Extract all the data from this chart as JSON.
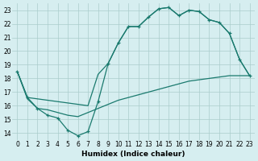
{
  "xlabel": "Humidex (Indice chaleur)",
  "bg_color": "#d6eef0",
  "grid_color": "#aacccc",
  "line_color": "#1a7a6e",
  "xlim": [
    -0.5,
    23.5
  ],
  "ylim": [
    13.5,
    23.5
  ],
  "yticks": [
    14,
    15,
    16,
    17,
    18,
    19,
    20,
    21,
    22,
    23
  ],
  "xticks": [
    0,
    1,
    2,
    3,
    4,
    5,
    6,
    7,
    8,
    9,
    10,
    11,
    12,
    13,
    14,
    15,
    16,
    17,
    18,
    19,
    20,
    21,
    22,
    23
  ],
  "curve_main_x": [
    0,
    1,
    2,
    3,
    4,
    5,
    6,
    7,
    8,
    9,
    10,
    11,
    12,
    13,
    14,
    15,
    16,
    17,
    18,
    19,
    20,
    21,
    22,
    23
  ],
  "curve_main_y": [
    18.5,
    16.6,
    15.8,
    15.3,
    15.1,
    14.2,
    13.8,
    14.1,
    16.3,
    19.1,
    20.6,
    21.8,
    21.8,
    22.5,
    23.1,
    23.2,
    22.6,
    23.0,
    22.9,
    22.3,
    22.1,
    21.3,
    19.4,
    18.2
  ],
  "curve_upper_x": [
    0,
    1,
    7,
    8,
    9,
    10,
    11,
    12,
    13,
    14,
    15,
    16,
    17,
    18,
    19,
    20,
    21,
    22,
    23
  ],
  "curve_upper_y": [
    18.5,
    16.6,
    16.0,
    18.3,
    19.1,
    20.6,
    21.8,
    21.8,
    22.5,
    23.1,
    23.2,
    22.6,
    23.0,
    22.9,
    22.3,
    22.1,
    21.3,
    19.4,
    18.2
  ],
  "curve_lower_x": [
    0,
    1,
    2,
    3,
    4,
    5,
    6,
    7,
    8,
    9,
    10,
    11,
    12,
    13,
    14,
    15,
    16,
    17,
    18,
    19,
    20,
    21,
    22,
    23
  ],
  "curve_lower_y": [
    18.5,
    16.5,
    15.8,
    15.7,
    15.5,
    15.3,
    15.2,
    15.5,
    15.8,
    16.1,
    16.4,
    16.6,
    16.8,
    17.0,
    17.2,
    17.4,
    17.6,
    17.8,
    17.9,
    18.0,
    18.1,
    18.2,
    18.2,
    18.2
  ]
}
